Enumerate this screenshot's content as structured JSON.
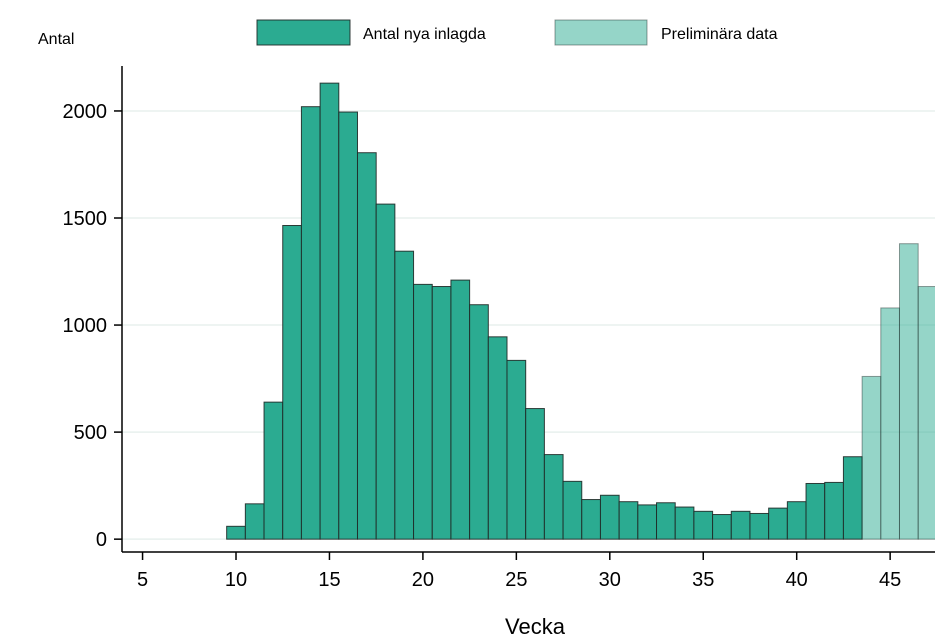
{
  "chart_data": {
    "type": "bar",
    "ylabel": "Antal",
    "xlabel": "Vecka",
    "xlim": [
      3.9,
      47.4
    ],
    "ylim": [
      -60,
      2210
    ],
    "x_ticks": [
      5,
      10,
      15,
      20,
      25,
      30,
      35,
      40,
      45
    ],
    "y_ticks": [
      0,
      500,
      1000,
      1500,
      2000
    ],
    "grid": "horizontal",
    "legend_position": "top",
    "series": [
      {
        "name": "Antal nya inlagda",
        "color": "#2bab91",
        "opacity": 1,
        "x": [
          10,
          11,
          12,
          13,
          14,
          15,
          16,
          17,
          18,
          19,
          20,
          21,
          22,
          23,
          24,
          25,
          26,
          27,
          28,
          29,
          30,
          31,
          32,
          33,
          34,
          35,
          36,
          37,
          38,
          39,
          40,
          41,
          42,
          43
        ],
        "values": [
          60,
          165,
          640,
          1465,
          2020,
          2130,
          1995,
          1805,
          1565,
          1345,
          1190,
          1180,
          1210,
          1095,
          945,
          835,
          610,
          395,
          270,
          185,
          205,
          175,
          160,
          170,
          150,
          130,
          115,
          130,
          120,
          145,
          175,
          260,
          265,
          385
        ]
      },
      {
        "name": "Preliminära data",
        "color": "#2bab91",
        "opacity": 0.5,
        "x": [
          44,
          45,
          46,
          47
        ],
        "values": [
          760,
          1080,
          1380,
          1180
        ]
      }
    ]
  },
  "colors": {
    "bar_stroke": "#1f2a27",
    "grid": "#e8f0ee",
    "axis": "#000000"
  }
}
